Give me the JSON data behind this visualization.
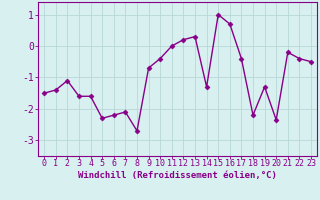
{
  "x": [
    0,
    1,
    2,
    3,
    4,
    5,
    6,
    7,
    8,
    9,
    10,
    11,
    12,
    13,
    14,
    15,
    16,
    17,
    18,
    19,
    20,
    21,
    22,
    23
  ],
  "y": [
    -1.5,
    -1.4,
    -1.1,
    -1.6,
    -1.6,
    -2.3,
    -2.2,
    -2.1,
    -2.7,
    -0.7,
    -0.4,
    0.0,
    0.2,
    0.3,
    -1.3,
    1.0,
    0.7,
    -0.4,
    -2.2,
    -1.3,
    -2.35,
    -0.2,
    -0.4,
    -0.5
  ],
  "line_color": "#880088",
  "marker": "D",
  "markersize": 2.5,
  "linewidth": 1.0,
  "xlabel": "Windchill (Refroidissement éolien,°C)",
  "xlabel_fontsize": 6.5,
  "xtick_labels": [
    "0",
    "1",
    "2",
    "3",
    "4",
    "5",
    "6",
    "7",
    "8",
    "9",
    "10",
    "11",
    "12",
    "13",
    "14",
    "15",
    "16",
    "17",
    "18",
    "19",
    "20",
    "21",
    "22",
    "23"
  ],
  "yticks": [
    -3,
    -2,
    -1,
    0,
    1
  ],
  "ylim": [
    -3.5,
    1.4
  ],
  "xlim": [
    -0.5,
    23.5
  ],
  "bg_color": "#d8f0f0",
  "grid_color": "#b8d8d8",
  "tick_color": "#880088",
  "tick_fontsize": 6,
  "label_fontsize": 7
}
